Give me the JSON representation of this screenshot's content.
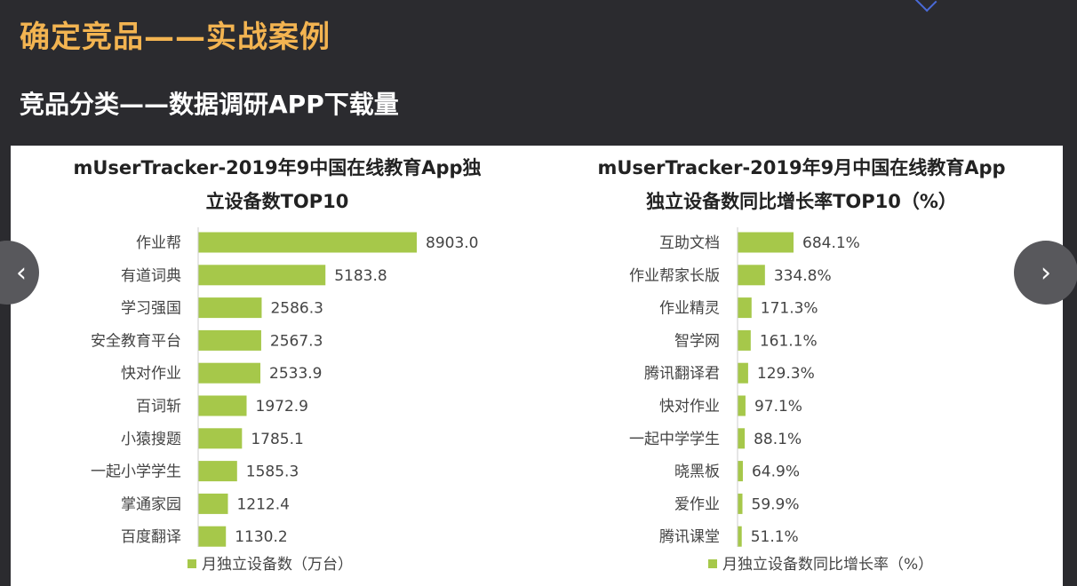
{
  "slide": {
    "title": "确定竞品——实战案例",
    "subtitle": "竞品分类——数据调研APP下载量"
  },
  "nav": {
    "prev_icon": "‹",
    "next_icon": "›"
  },
  "colors": {
    "bar": "#a6c84a",
    "label": "#444444",
    "title": "#f3b451"
  },
  "chart_data": [
    {
      "type": "bar",
      "orientation": "horizontal",
      "title_lines": [
        "mUserTracker-2019年9中国在线教育App独",
        "立设备数TOP10"
      ],
      "categories": [
        "作业帮",
        "有道词典",
        "学习强国",
        "安全教育平台",
        "快对作业",
        "百词斩",
        "小猿搜题",
        "一起小学学生",
        "掌通家园",
        "百度翻译"
      ],
      "values": [
        8903.0,
        5183.8,
        2586.3,
        2567.3,
        2533.9,
        1972.9,
        1785.1,
        1585.3,
        1212.4,
        1130.2
      ],
      "value_labels": [
        "8903.0",
        "5183.8",
        "2586.3",
        "2567.3",
        "2533.9",
        "1972.9",
        "1785.1",
        "1585.3",
        "1212.4",
        "1130.2"
      ],
      "legend": "月独立设备数（万台）",
      "legend_position": "bottom-center",
      "xlim": [
        0,
        8903.0
      ],
      "grid": false
    },
    {
      "type": "bar",
      "orientation": "horizontal",
      "title_lines": [
        "mUserTracker-2019年9月中国在线教育App",
        "独立设备数同比增长率TOP10（%）"
      ],
      "categories": [
        "互助文档",
        "作业帮家长版",
        "作业精灵",
        "智学网",
        "腾讯翻译君",
        "快对作业",
        "一起中学学生",
        "晓黑板",
        "爱作业",
        "腾讯课堂"
      ],
      "values": [
        684.1,
        334.8,
        171.3,
        161.1,
        129.3,
        97.1,
        88.1,
        64.9,
        59.9,
        51.1
      ],
      "value_labels": [
        "684.1%",
        "334.8%",
        "171.3%",
        "161.1%",
        "129.3%",
        "97.1%",
        "88.1%",
        "64.9%",
        "59.9%",
        "51.1%"
      ],
      "legend": "月独立设备数同比增长率（%）",
      "legend_position": "bottom-center",
      "xlim": [
        0,
        684.1
      ],
      "grid": false
    }
  ]
}
